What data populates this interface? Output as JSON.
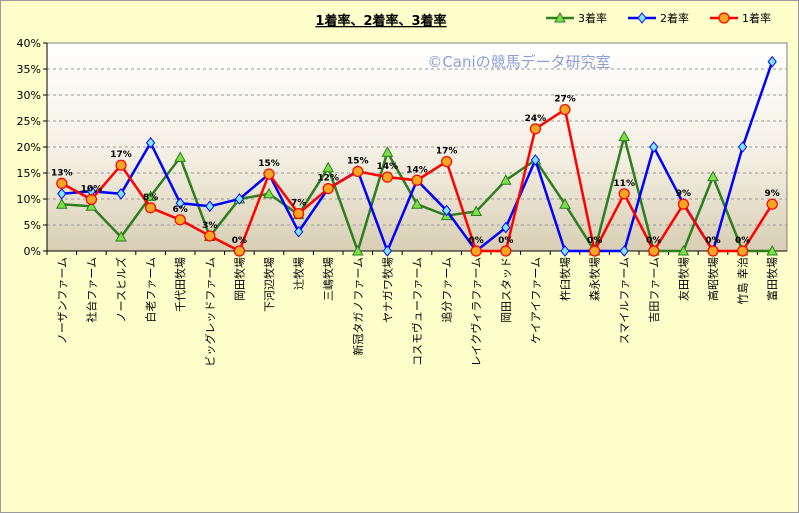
{
  "chart_data": {
    "type": "line",
    "title": "1着率、2着率、3着率",
    "watermark": "©Caniの競馬データ研究室",
    "ylim": [
      0,
      40
    ],
    "yticks": [
      "0%",
      "5%",
      "10%",
      "15%",
      "20%",
      "25%",
      "30%",
      "35%",
      "40%"
    ],
    "legend_position": "top-right",
    "categories": [
      "ノーザンファーム",
      "社台ファーム",
      "ノースヒルズ",
      "白老ファーム",
      "千代田牧場",
      "ビッグレッドファーム",
      "岡田牧場",
      "下河辺牧場",
      "辻牧場",
      "三嶋牧場",
      "新冠タガノファーム",
      "ヤナガワ牧場",
      "コスモヴューファーム",
      "追分ファーム",
      "レイクヴィラファーム",
      "岡田スタッド",
      "ケイアイファーム",
      "杵臼牧場",
      "森永牧場",
      "スマイルファーム",
      "吉田ファーム",
      "友田牧場",
      "高昭牧場",
      "竹島 幸治",
      "富田牧場"
    ],
    "series": [
      {
        "name": "3着率",
        "color": "#2e7d1e",
        "marker": "triangle",
        "values": [
          9,
          8.6,
          2.7,
          10.5,
          18,
          2.8,
          10,
          11,
          7,
          16,
          0,
          19,
          9,
          6.8,
          7.6,
          13.6,
          17.5,
          9,
          0,
          22,
          0,
          0,
          14.3,
          0,
          0
        ]
      },
      {
        "name": "2着率",
        "color": "#0000ff",
        "marker": "diamond",
        "values": [
          11,
          11.5,
          11,
          20.8,
          9.2,
          8.6,
          10,
          14.8,
          3.7,
          12,
          15.4,
          0,
          13.6,
          7.8,
          0,
          4.5,
          17.5,
          0,
          0,
          0,
          20,
          9.1,
          0,
          20,
          36.4
        ]
      },
      {
        "name": "1着率",
        "color": "#ff0000",
        "marker": "circle",
        "values": [
          13,
          9.9,
          16.5,
          8.3,
          6,
          2.9,
          0,
          14.8,
          7.2,
          12,
          15.3,
          14.2,
          13.6,
          17.2,
          0,
          0,
          23.5,
          27.2,
          0,
          11,
          0,
          9,
          0,
          0,
          9
        ]
      }
    ],
    "data_labels": {
      "series": "1着率",
      "labels": [
        "13%",
        "10%",
        "17%",
        "8%",
        "6%",
        "3%",
        "0%",
        "15%",
        "7%",
        "12%",
        "15%",
        "14%",
        "14%",
        "17%",
        "0%",
        "0%",
        "24%",
        "27%",
        "0%",
        "11%",
        "0%",
        "9%",
        "0%",
        "0%",
        "9%"
      ]
    }
  }
}
